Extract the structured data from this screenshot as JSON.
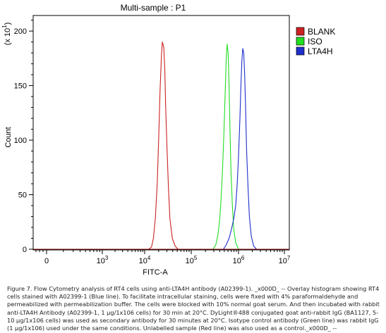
{
  "chart_data": {
    "type": "line",
    "title": "Multi-sample : P1",
    "xlabel": "FITC-A",
    "ylabel": "Count",
    "y_multiplier": "(x 10",
    "y_multiplier_exp": "1",
    "y_multiplier_close": ")",
    "xscale": "log",
    "ylim": [
      0,
      220
    ],
    "yticks": [
      0,
      50,
      100,
      150,
      200
    ],
    "ytick_labels": [
      "0",
      "50",
      "100",
      "150",
      "200"
    ],
    "xticks": [
      {
        "base": "0",
        "exp": ""
      },
      {
        "base": "10",
        "exp": "3"
      },
      {
        "base": "10",
        "exp": "4"
      },
      {
        "base": "10",
        "exp": "5"
      },
      {
        "base": "10",
        "exp": "6"
      },
      {
        "base": "10",
        "exp": "7"
      }
    ],
    "legend_position": "right",
    "series": [
      {
        "name": "BLANK",
        "color": "#cc2222",
        "points": [
          [
            4.02,
            0
          ],
          [
            4.1,
            0
          ],
          [
            4.16,
            2
          ],
          [
            4.2,
            10
          ],
          [
            4.24,
            28
          ],
          [
            4.28,
            60
          ],
          [
            4.31,
            100
          ],
          [
            4.34,
            145
          ],
          [
            4.37,
            178
          ],
          [
            4.39,
            190
          ],
          [
            4.42,
            185
          ],
          [
            4.44,
            165
          ],
          [
            4.46,
            130
          ],
          [
            4.49,
            90
          ],
          [
            4.52,
            55
          ],
          [
            4.55,
            28
          ],
          [
            4.6,
            10
          ],
          [
            4.66,
            3
          ],
          [
            4.72,
            0
          ],
          [
            4.8,
            0
          ]
        ]
      },
      {
        "name": "ISO",
        "color": "#22dd22",
        "points": [
          [
            5.46,
            0
          ],
          [
            5.52,
            4
          ],
          [
            5.56,
            12
          ],
          [
            5.6,
            26
          ],
          [
            5.63,
            45
          ],
          [
            5.66,
            70
          ],
          [
            5.69,
            105
          ],
          [
            5.72,
            145
          ],
          [
            5.74,
            175
          ],
          [
            5.76,
            188
          ],
          [
            5.78,
            180
          ],
          [
            5.8,
            150
          ],
          [
            5.82,
            110
          ],
          [
            5.84,
            72
          ],
          [
            5.87,
            40
          ],
          [
            5.9,
            18
          ],
          [
            5.94,
            6
          ],
          [
            6.0,
            0
          ]
        ]
      },
      {
        "name": "LTA4H",
        "color": "#1f2fcc",
        "points": [
          [
            5.68,
            0
          ],
          [
            5.74,
            4
          ],
          [
            5.8,
            10
          ],
          [
            5.85,
            18
          ],
          [
            5.9,
            28
          ],
          [
            5.94,
            40
          ],
          [
            5.97,
            58
          ],
          [
            6.0,
            85
          ],
          [
            6.03,
            120
          ],
          [
            6.05,
            150
          ],
          [
            6.07,
            172
          ],
          [
            6.09,
            184
          ],
          [
            6.11,
            180
          ],
          [
            6.13,
            160
          ],
          [
            6.15,
            128
          ],
          [
            6.17,
            92
          ],
          [
            6.2,
            58
          ],
          [
            6.23,
            30
          ],
          [
            6.27,
            12
          ],
          [
            6.32,
            3
          ],
          [
            6.38,
            0
          ]
        ]
      }
    ]
  },
  "caption": "Figure 7. Flow Cytometry analysis of RT4 cells using anti-LTA4H antibody (A02399-1). _x000D_ -- Overlay histogram showing RT4 cells stained with A02399-1 (Blue line). To facilitate intracellular staining, cells were fixed with 4% paraformaldehyde and permeabilized with permeabilization buffer. The cells were blocked with 10% normal goat serum. And then incubated with rabbit anti-LTA4H Antibody (A02399-1, 1 μg/1x106 cells) for 30 min at 20°C. DyLight®488 conjugated goat anti-rabbit IgG (BA1127, 5-10 μg/1x106 cells) was used as secondary antibody for 30 minutes at 20°C. Isotype control antibody (Green line) was rabbit IgG (1 μg/1x106) used under the same conditions. Unlabelled sample (Red line) was also used as a control._x000D_ --"
}
